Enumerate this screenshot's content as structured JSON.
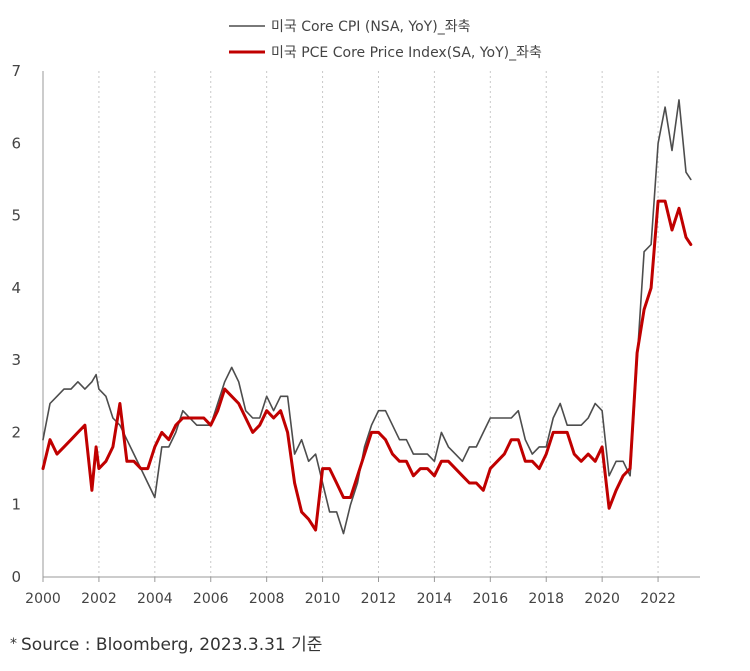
{
  "source": {
    "star": "*",
    "text": "Source : Bloomberg, 2023.3.31 기준"
  },
  "chart_data": {
    "type": "line",
    "title": "",
    "xlabel": "",
    "ylabel": "",
    "xlim": [
      2000,
      2023.5
    ],
    "ylim": [
      0,
      7
    ],
    "grid": "vertical-dotted",
    "legend_position": "top-center",
    "x_ticks": [
      "2000",
      "2002",
      "2004",
      "2006",
      "2008",
      "2010",
      "2012",
      "2014",
      "2016",
      "2018",
      "2020",
      "2022"
    ],
    "y_ticks": [
      "0",
      "1",
      "2",
      "3",
      "4",
      "5",
      "6",
      "7"
    ],
    "series": [
      {
        "name": "미국 Core CPI (NSA, YoY)_좌축",
        "color": "#4d4d4d",
        "points": [
          [
            2000.0,
            1.9
          ],
          [
            2000.25,
            2.4
          ],
          [
            2000.5,
            2.5
          ],
          [
            2000.75,
            2.6
          ],
          [
            2001.0,
            2.6
          ],
          [
            2001.25,
            2.7
          ],
          [
            2001.5,
            2.6
          ],
          [
            2001.75,
            2.7
          ],
          [
            2001.9,
            2.8
          ],
          [
            2002.0,
            2.6
          ],
          [
            2002.25,
            2.5
          ],
          [
            2002.5,
            2.2
          ],
          [
            2002.75,
            2.1
          ],
          [
            2003.0,
            1.9
          ],
          [
            2003.25,
            1.7
          ],
          [
            2003.5,
            1.5
          ],
          [
            2003.75,
            1.3
          ],
          [
            2004.0,
            1.1
          ],
          [
            2004.25,
            1.8
          ],
          [
            2004.5,
            1.8
          ],
          [
            2004.75,
            2.0
          ],
          [
            2005.0,
            2.3
          ],
          [
            2005.25,
            2.2
          ],
          [
            2005.5,
            2.1
          ],
          [
            2005.75,
            2.1
          ],
          [
            2006.0,
            2.1
          ],
          [
            2006.25,
            2.4
          ],
          [
            2006.5,
            2.7
          ],
          [
            2006.75,
            2.9
          ],
          [
            2007.0,
            2.7
          ],
          [
            2007.25,
            2.3
          ],
          [
            2007.5,
            2.2
          ],
          [
            2007.75,
            2.2
          ],
          [
            2008.0,
            2.5
          ],
          [
            2008.25,
            2.3
          ],
          [
            2008.5,
            2.5
          ],
          [
            2008.75,
            2.5
          ],
          [
            2009.0,
            1.7
          ],
          [
            2009.25,
            1.9
          ],
          [
            2009.5,
            1.6
          ],
          [
            2009.75,
            1.7
          ],
          [
            2010.0,
            1.3
          ],
          [
            2010.25,
            0.9
          ],
          [
            2010.5,
            0.9
          ],
          [
            2010.75,
            0.6
          ],
          [
            2011.0,
            1.0
          ],
          [
            2011.25,
            1.3
          ],
          [
            2011.5,
            1.8
          ],
          [
            2011.75,
            2.1
          ],
          [
            2012.0,
            2.3
          ],
          [
            2012.25,
            2.3
          ],
          [
            2012.5,
            2.1
          ],
          [
            2012.75,
            1.9
          ],
          [
            2013.0,
            1.9
          ],
          [
            2013.25,
            1.7
          ],
          [
            2013.5,
            1.7
          ],
          [
            2013.75,
            1.7
          ],
          [
            2014.0,
            1.6
          ],
          [
            2014.25,
            2.0
          ],
          [
            2014.5,
            1.8
          ],
          [
            2014.75,
            1.7
          ],
          [
            2015.0,
            1.6
          ],
          [
            2015.25,
            1.8
          ],
          [
            2015.5,
            1.8
          ],
          [
            2015.75,
            2.0
          ],
          [
            2016.0,
            2.2
          ],
          [
            2016.25,
            2.2
          ],
          [
            2016.5,
            2.2
          ],
          [
            2016.75,
            2.2
          ],
          [
            2017.0,
            2.3
          ],
          [
            2017.25,
            1.9
          ],
          [
            2017.5,
            1.7
          ],
          [
            2017.75,
            1.8
          ],
          [
            2018.0,
            1.8
          ],
          [
            2018.25,
            2.2
          ],
          [
            2018.5,
            2.4
          ],
          [
            2018.75,
            2.1
          ],
          [
            2019.0,
            2.1
          ],
          [
            2019.25,
            2.1
          ],
          [
            2019.5,
            2.2
          ],
          [
            2019.75,
            2.4
          ],
          [
            2020.0,
            2.3
          ],
          [
            2020.25,
            1.4
          ],
          [
            2020.5,
            1.6
          ],
          [
            2020.75,
            1.6
          ],
          [
            2021.0,
            1.4
          ],
          [
            2021.25,
            3.0
          ],
          [
            2021.5,
            4.5
          ],
          [
            2021.75,
            4.6
          ],
          [
            2022.0,
            6.0
          ],
          [
            2022.25,
            6.5
          ],
          [
            2022.5,
            5.9
          ],
          [
            2022.75,
            6.6
          ],
          [
            2023.0,
            5.6
          ],
          [
            2023.17,
            5.5
          ]
        ]
      },
      {
        "name": "미국 PCE Core Price Index(SA, YoY)_좌축",
        "color": "#c00000",
        "points": [
          [
            2000.0,
            1.5
          ],
          [
            2000.25,
            1.9
          ],
          [
            2000.5,
            1.7
          ],
          [
            2000.75,
            1.8
          ],
          [
            2001.0,
            1.9
          ],
          [
            2001.25,
            2.0
          ],
          [
            2001.5,
            2.1
          ],
          [
            2001.75,
            1.2
          ],
          [
            2001.9,
            1.8
          ],
          [
            2002.0,
            1.5
          ],
          [
            2002.25,
            1.6
          ],
          [
            2002.5,
            1.8
          ],
          [
            2002.75,
            2.4
          ],
          [
            2003.0,
            1.6
          ],
          [
            2003.25,
            1.6
          ],
          [
            2003.5,
            1.5
          ],
          [
            2003.75,
            1.5
          ],
          [
            2004.0,
            1.8
          ],
          [
            2004.25,
            2.0
          ],
          [
            2004.5,
            1.9
          ],
          [
            2004.75,
            2.1
          ],
          [
            2005.0,
            2.2
          ],
          [
            2005.25,
            2.2
          ],
          [
            2005.5,
            2.2
          ],
          [
            2005.75,
            2.2
          ],
          [
            2006.0,
            2.1
          ],
          [
            2006.25,
            2.3
          ],
          [
            2006.5,
            2.6
          ],
          [
            2006.75,
            2.5
          ],
          [
            2007.0,
            2.4
          ],
          [
            2007.25,
            2.2
          ],
          [
            2007.5,
            2.0
          ],
          [
            2007.75,
            2.1
          ],
          [
            2008.0,
            2.3
          ],
          [
            2008.25,
            2.2
          ],
          [
            2008.5,
            2.3
          ],
          [
            2008.75,
            2.0
          ],
          [
            2009.0,
            1.3
          ],
          [
            2009.25,
            0.9
          ],
          [
            2009.5,
            0.8
          ],
          [
            2009.75,
            0.65
          ],
          [
            2010.0,
            1.5
          ],
          [
            2010.25,
            1.5
          ],
          [
            2010.5,
            1.3
          ],
          [
            2010.75,
            1.1
          ],
          [
            2011.0,
            1.1
          ],
          [
            2011.25,
            1.4
          ],
          [
            2011.5,
            1.7
          ],
          [
            2011.75,
            2.0
          ],
          [
            2012.0,
            2.0
          ],
          [
            2012.25,
            1.9
          ],
          [
            2012.5,
            1.7
          ],
          [
            2012.75,
            1.6
          ],
          [
            2013.0,
            1.6
          ],
          [
            2013.25,
            1.4
          ],
          [
            2013.5,
            1.5
          ],
          [
            2013.75,
            1.5
          ],
          [
            2014.0,
            1.4
          ],
          [
            2014.25,
            1.6
          ],
          [
            2014.5,
            1.6
          ],
          [
            2014.75,
            1.5
          ],
          [
            2015.0,
            1.4
          ],
          [
            2015.25,
            1.3
          ],
          [
            2015.5,
            1.3
          ],
          [
            2015.75,
            1.2
          ],
          [
            2016.0,
            1.5
          ],
          [
            2016.25,
            1.6
          ],
          [
            2016.5,
            1.7
          ],
          [
            2016.75,
            1.9
          ],
          [
            2017.0,
            1.9
          ],
          [
            2017.25,
            1.6
          ],
          [
            2017.5,
            1.6
          ],
          [
            2017.75,
            1.5
          ],
          [
            2018.0,
            1.7
          ],
          [
            2018.25,
            2.0
          ],
          [
            2018.5,
            2.0
          ],
          [
            2018.75,
            2.0
          ],
          [
            2019.0,
            1.7
          ],
          [
            2019.25,
            1.6
          ],
          [
            2019.5,
            1.7
          ],
          [
            2019.75,
            1.6
          ],
          [
            2020.0,
            1.8
          ],
          [
            2020.25,
            0.95
          ],
          [
            2020.5,
            1.2
          ],
          [
            2020.75,
            1.4
          ],
          [
            2021.0,
            1.5
          ],
          [
            2021.25,
            3.1
          ],
          [
            2021.5,
            3.7
          ],
          [
            2021.75,
            4.0
          ],
          [
            2022.0,
            5.2
          ],
          [
            2022.25,
            5.2
          ],
          [
            2022.5,
            4.8
          ],
          [
            2022.75,
            5.1
          ],
          [
            2023.0,
            4.7
          ],
          [
            2023.17,
            4.6
          ]
        ]
      }
    ]
  }
}
